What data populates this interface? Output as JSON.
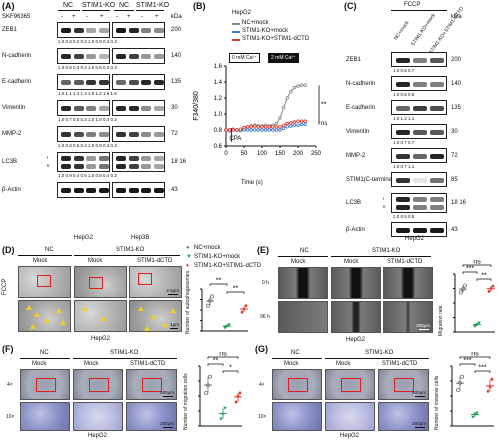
{
  "panelA": {
    "label": "(A)",
    "col_headers": [
      "NC",
      "STIM1-KO",
      "NC",
      "STIM1-KO"
    ],
    "treatment_label": "SKF96365",
    "treatment_signs": [
      "-",
      "+",
      "-",
      "+",
      "-",
      "+",
      "-",
      "+"
    ],
    "kda_label": "kDa",
    "rows": [
      {
        "name": "ZEB1",
        "kda": "200",
        "quant": "1.0 0.8 0.2 0.2  1.0 0.9 0.4 0.3"
      },
      {
        "name": "N-cadherin",
        "kda": "140",
        "quant": "1.0 0.8 0.3 0.2  1.0 0.8 0.3 0.3"
      },
      {
        "name": "E-cadherin",
        "kda": "135",
        "quant": "1.0 1.1 1.4 1.4  1.0 1.2 1.6 1.6"
      },
      {
        "name": "Vimentin",
        "kda": "30",
        "quant": "1.0 0.7 0.5 0.3  1.0 1.0 0.4 0.3"
      },
      {
        "name": "MMP-2",
        "kda": "72",
        "quant": "1.0 0.8 0.5 0.4  1.0 0.9 0.4 0.3"
      },
      {
        "name": "LC3B",
        "roman": [
          "I",
          "II"
        ],
        "kda": "18 16",
        "quant": "1.0 0.9 0.4 0.6  1.0 0.8 0.4 0.3"
      },
      {
        "name": "β-Actin",
        "kda": "43",
        "quant": ""
      }
    ],
    "cell_labels": [
      "HepG2",
      "Hep3B"
    ]
  },
  "panelB": {
    "label": "(B)",
    "title": "HepG2",
    "legend": [
      "NC+mock",
      "STIM1-KO+mock",
      "STIM1-KO+STIM1-dCTD"
    ],
    "legend_colors": [
      "#888888",
      "#3a7bd5",
      "#e0352b"
    ],
    "buffer_labels": [
      "0 mM Ca²⁺",
      "2 mM Ca²⁺"
    ],
    "ylabel": "F340/380",
    "xlabel": "Time (s)",
    "cpa_label": "CPA",
    "sig_labels": [
      "**",
      "ns"
    ]
  },
  "chart_data": {
    "type": "line",
    "title": "HepG2",
    "xlabel": "Time (s)",
    "ylabel": "F340/380",
    "xlim": [
      0,
      250
    ],
    "ylim": [
      0.6,
      1.6
    ],
    "yticks": [
      0.6,
      0.8,
      1.0,
      1.2,
      1.4,
      1.6
    ],
    "xticks": [
      0,
      50,
      100,
      150,
      200,
      250
    ],
    "series": [
      {
        "name": "NC+mock",
        "color": "#888888",
        "x": [
          0,
          10,
          20,
          30,
          40,
          50,
          60,
          70,
          80,
          90,
          100,
          110,
          120,
          130,
          140,
          150,
          160,
          170,
          180,
          190,
          200,
          210,
          220
        ],
        "y": [
          0.8,
          0.8,
          0.81,
          0.8,
          0.8,
          0.82,
          0.84,
          0.85,
          0.86,
          0.85,
          0.85,
          0.86,
          0.85,
          0.86,
          0.88,
          0.95,
          1.08,
          1.2,
          1.28,
          1.33,
          1.35,
          1.36,
          1.36
        ]
      },
      {
        "name": "STIM1-KO+mock",
        "color": "#3a7bd5",
        "x": [
          0,
          10,
          20,
          30,
          40,
          50,
          60,
          70,
          80,
          90,
          100,
          110,
          120,
          130,
          140,
          150,
          160,
          170,
          180,
          190,
          200,
          210,
          220
        ],
        "y": [
          0.8,
          0.79,
          0.8,
          0.8,
          0.79,
          0.8,
          0.8,
          0.8,
          0.8,
          0.8,
          0.8,
          0.8,
          0.8,
          0.8,
          0.8,
          0.8,
          0.82,
          0.84,
          0.85,
          0.86,
          0.86,
          0.87,
          0.87
        ]
      },
      {
        "name": "STIM1-KO+STIM1-dCTD",
        "color": "#e0352b",
        "x": [
          0,
          10,
          20,
          30,
          40,
          50,
          60,
          70,
          80,
          90,
          100,
          110,
          120,
          130,
          140,
          150,
          160,
          170,
          180,
          190,
          200,
          210,
          220
        ],
        "y": [
          0.8,
          0.8,
          0.8,
          0.8,
          0.81,
          0.83,
          0.84,
          0.84,
          0.85,
          0.84,
          0.84,
          0.84,
          0.84,
          0.84,
          0.84,
          0.84,
          0.86,
          0.88,
          0.89,
          0.9,
          0.91,
          0.91,
          0.91
        ]
      }
    ]
  },
  "panelC": {
    "label": "(C)",
    "header": "FCCP",
    "col_headers": [
      "NC+mock",
      "STIM1-KO+mock",
      "STIM1-KO+STIM1-dCTD"
    ],
    "kda_label": "kDa",
    "rows": [
      {
        "name": "ZEB1",
        "kda": "200",
        "quant": "1.0 0.5 0.7"
      },
      {
        "name": "N-cadherin",
        "kda": "140",
        "quant": "1.0 0.5 0.5"
      },
      {
        "name": "E-cadherin",
        "kda": "135",
        "quant": "1.0 1.2 1.1"
      },
      {
        "name": "Vimentin",
        "kda": "30",
        "quant": "1.0 0.7 0.7"
      },
      {
        "name": "MMP-2",
        "kda": "72",
        "quant": "1.0 0.7 1.1"
      },
      {
        "name": "STIM1(C-terminal)",
        "kda": "85",
        "quant": ""
      },
      {
        "name": "LC3B",
        "roman": [
          "I",
          "II"
        ],
        "kda": "18 16",
        "quant": "1.0 0.5 0.5"
      },
      {
        "name": "β-Actin",
        "kda": "43",
        "quant": ""
      }
    ],
    "cell_label": "HepG2"
  },
  "panelD": {
    "label": "(D)",
    "groups": [
      "NC",
      "STIM1-KO"
    ],
    "sub": [
      "Mock",
      "Mock",
      "STIM1-dCTD"
    ],
    "side_label": "FCCP",
    "scale_top": "2.5μm",
    "scale_bottom": "1μm",
    "legend": [
      "NC+mock",
      "STIM1-KO+mock",
      "STIM1-KO+STIM1-dCTD"
    ],
    "ylabel": "Number of autophagosomes",
    "sig": [
      "**",
      "**"
    ],
    "cell_label": "HepG2"
  },
  "panelE": {
    "label": "(E)",
    "groups": [
      "NC",
      "STIM1-KO"
    ],
    "sub": [
      "Mock",
      "Mock",
      "STIM1-dCTD"
    ],
    "rows": [
      "0 h",
      "96 h"
    ],
    "scale": "200μm",
    "ylabel": "Migration rate",
    "sig": [
      "ns",
      "***",
      "**"
    ],
    "cell_label": "HepG2"
  },
  "panelF": {
    "label": "(F)",
    "groups": [
      "NC",
      "STIM1-KO"
    ],
    "sub": [
      "Mock",
      "Mock",
      "STIM1-dCTD"
    ],
    "rows": [
      "4×",
      "10×"
    ],
    "scales": [
      "500μm",
      "200μm"
    ],
    "ylabel": "Number of migration cells",
    "sig": [
      "ns",
      "**",
      "*"
    ],
    "cell_label": "HepG2"
  },
  "panelG": {
    "label": "(G)",
    "groups": [
      "NC",
      "STIM1-KO"
    ],
    "sub": [
      "Mock",
      "Mock",
      "STIM1-dCTD"
    ],
    "rows": [
      "4×",
      "10×"
    ],
    "scales": [
      "500μm",
      "200μm"
    ],
    "ylabel": "Number of invasive cells",
    "sig": [
      "ns",
      "***",
      "***"
    ],
    "cell_label": "HepG2"
  }
}
